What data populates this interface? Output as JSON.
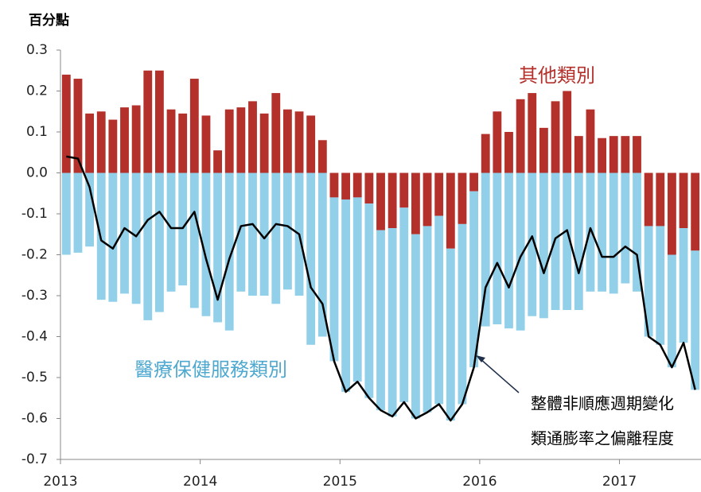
{
  "chart_data": {
    "type": "stacked_bar_line",
    "y_unit_label": "百分點",
    "categories": [
      "2013",
      null,
      null,
      null,
      null,
      null,
      null,
      null,
      null,
      null,
      null,
      null,
      "2014",
      null,
      null,
      null,
      null,
      null,
      null,
      null,
      null,
      null,
      null,
      null,
      "2015",
      null,
      null,
      null,
      null,
      null,
      null,
      null,
      null,
      null,
      null,
      null,
      "2016",
      null,
      null,
      null,
      null,
      null,
      null,
      null,
      null,
      null,
      null,
      null,
      "2017",
      null,
      null,
      null,
      null,
      null,
      null
    ],
    "series": [
      {
        "name": "其他類別",
        "color": "#b3302b",
        "type": "bar",
        "values": [
          0.24,
          0.23,
          0.145,
          0.15,
          0.13,
          0.16,
          0.165,
          0.25,
          0.25,
          0.155,
          0.145,
          0.23,
          0.14,
          0.055,
          0.155,
          0.16,
          0.175,
          0.145,
          0.195,
          0.155,
          0.15,
          0.14,
          0.08,
          -0.06,
          -0.065,
          -0.06,
          -0.075,
          -0.14,
          -0.135,
          -0.085,
          -0.15,
          -0.13,
          -0.105,
          -0.185,
          -0.125,
          -0.045,
          0.095,
          0.15,
          0.1,
          0.18,
          0.195,
          0.11,
          0.175,
          0.2,
          0.09,
          0.155,
          0.085,
          0.09,
          0.09,
          0.09,
          -0.13,
          -0.13,
          -0.2,
          -0.135,
          -0.19
        ]
      },
      {
        "name": "醫療保健服務類別",
        "color": "#92d0ea",
        "type": "bar",
        "values": [
          -0.2,
          -0.195,
          -0.18,
          -0.31,
          -0.315,
          -0.295,
          -0.32,
          -0.36,
          -0.34,
          -0.29,
          -0.275,
          -0.33,
          -0.35,
          -0.365,
          -0.385,
          -0.29,
          -0.3,
          -0.3,
          -0.32,
          -0.285,
          -0.3,
          -0.42,
          -0.4,
          -0.4,
          -0.47,
          -0.45,
          -0.475,
          -0.44,
          -0.46,
          -0.475,
          -0.45,
          -0.455,
          -0.46,
          -0.42,
          -0.44,
          -0.43,
          -0.375,
          -0.37,
          -0.38,
          -0.385,
          -0.35,
          -0.355,
          -0.335,
          -0.335,
          -0.335,
          -0.29,
          -0.29,
          -0.295,
          -0.27,
          -0.29,
          -0.27,
          -0.29,
          -0.275,
          -0.28,
          -0.34
        ]
      },
      {
        "color": "#000000",
        "type": "line",
        "values": [
          0.04,
          0.035,
          -0.035,
          -0.165,
          -0.185,
          -0.135,
          -0.155,
          -0.115,
          -0.095,
          -0.135,
          -0.135,
          -0.095,
          -0.21,
          -0.31,
          -0.21,
          -0.13,
          -0.125,
          -0.16,
          -0.125,
          -0.13,
          -0.15,
          -0.28,
          -0.32,
          -0.46,
          -0.535,
          -0.51,
          -0.55,
          -0.58,
          -0.595,
          -0.56,
          -0.6,
          -0.585,
          -0.565,
          -0.605,
          -0.565,
          -0.475,
          -0.28,
          -0.22,
          -0.28,
          -0.205,
          -0.155,
          -0.245,
          -0.16,
          -0.14,
          -0.245,
          -0.135,
          -0.205,
          -0.205,
          -0.18,
          -0.2,
          -0.4,
          -0.42,
          -0.475,
          -0.415,
          -0.53
        ]
      }
    ],
    "annotations": [
      "整體非順應週期變化",
      "類通膨率之偏離程度"
    ],
    "ylim": [
      -0.7,
      0.3
    ],
    "yticks": [
      -0.7,
      -0.6,
      -0.5,
      -0.4,
      -0.3,
      -0.2,
      -0.1,
      {
        "value": 0,
        "label": "0.0"
      },
      0.1,
      0.2,
      0.3
    ]
  }
}
